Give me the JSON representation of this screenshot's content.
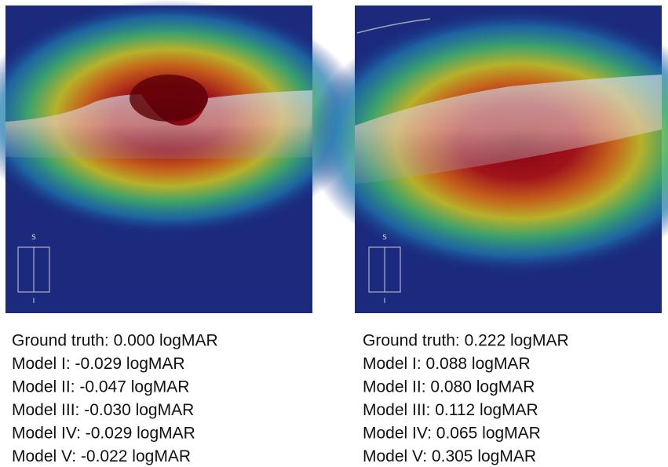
{
  "panels": [
    {
      "image_labels": [
        "S",
        "I"
      ],
      "lines": [
        "Ground truth: 0.000 logMAR",
        "Model I: -0.029 logMAR",
        "Model II: -0.047 logMAR",
        "Model III: -0.030 logMAR",
        "Model IV: -0.029 logMAR",
        "Model V: -0.022 logMAR"
      ]
    },
    {
      "image_labels": [
        "S",
        "I"
      ],
      "lines": [
        "Ground truth: 0.222 logMAR",
        "Model I: 0.088 logMAR",
        "Model II: 0.080 logMAR",
        "Model III: 0.112 logMAR",
        "Model IV: 0.065 logMAR",
        "Model V: 0.305 logMAR"
      ]
    }
  ]
}
